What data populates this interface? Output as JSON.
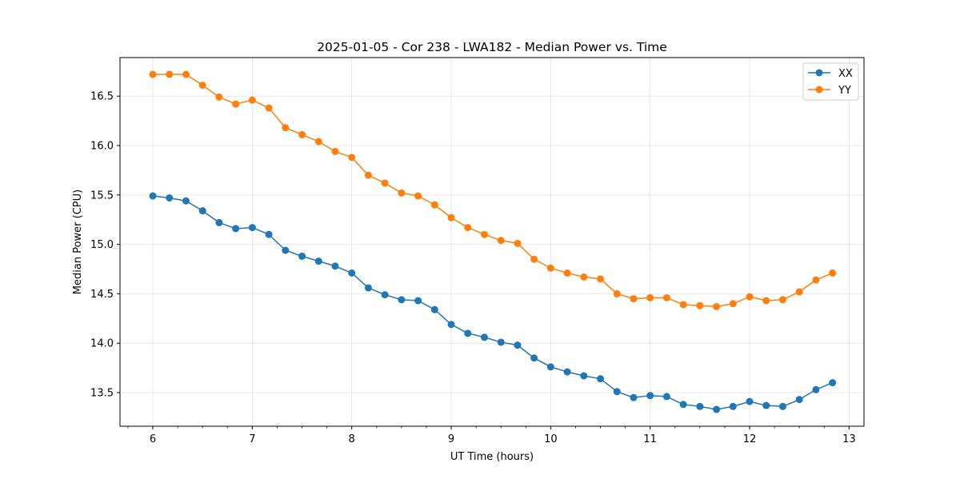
{
  "chart_data": {
    "type": "line",
    "title": "2025-01-05 - Cor 238 - LWA182 - Median Power vs. Time",
    "xlabel": "UT Time (hours)",
    "ylabel": "Median Power (CPU)",
    "xlim": [
      5.67,
      13.15
    ],
    "ylim": [
      13.16,
      16.89
    ],
    "xticks": [
      6,
      7,
      8,
      9,
      10,
      11,
      12,
      13
    ],
    "xtick_labels": [
      "6",
      "7",
      "8",
      "9",
      "10",
      "11",
      "12",
      "13"
    ],
    "xminor_step": 0.25,
    "yticks": [
      13.5,
      14.0,
      14.5,
      15.0,
      15.5,
      16.0,
      16.5
    ],
    "ytick_labels": [
      "13.5",
      "14.0",
      "14.5",
      "15.0",
      "15.5",
      "16.0",
      "16.5"
    ],
    "grid": true,
    "legend_position": "top-right",
    "x": [
      6.0,
      6.1667,
      6.3333,
      6.5,
      6.6667,
      6.8333,
      7.0,
      7.1667,
      7.3333,
      7.5,
      7.6667,
      7.8333,
      8.0,
      8.1667,
      8.3333,
      8.5,
      8.6667,
      8.8333,
      9.0,
      9.1667,
      9.3333,
      9.5,
      9.6667,
      9.8333,
      10.0,
      10.1667,
      10.3333,
      10.5,
      10.6667,
      10.8333,
      11.0,
      11.1667,
      11.3333,
      11.5,
      11.6667,
      11.8333,
      12.0,
      12.1667,
      12.3333,
      12.5,
      12.6667,
      12.8333
    ],
    "series": [
      {
        "name": "XX",
        "color": "#1f77b4",
        "values": [
          15.49,
          15.47,
          15.44,
          15.34,
          15.22,
          15.16,
          15.17,
          15.1,
          14.94,
          14.88,
          14.83,
          14.78,
          14.71,
          14.56,
          14.49,
          14.44,
          14.43,
          14.34,
          14.19,
          14.1,
          14.06,
          14.01,
          13.98,
          13.85,
          13.76,
          13.71,
          13.67,
          13.64,
          13.51,
          13.45,
          13.47,
          13.46,
          13.38,
          13.36,
          13.33,
          13.36,
          13.41,
          13.37,
          13.36,
          13.43,
          13.53,
          13.6
        ]
      },
      {
        "name": "YY",
        "color": "#ff7f0e",
        "values": [
          16.72,
          16.72,
          16.72,
          16.61,
          16.49,
          16.42,
          16.46,
          16.38,
          16.18,
          16.11,
          16.04,
          15.94,
          15.88,
          15.7,
          15.62,
          15.52,
          15.49,
          15.4,
          15.27,
          15.17,
          15.1,
          15.04,
          15.01,
          14.85,
          14.76,
          14.71,
          14.67,
          14.65,
          14.5,
          14.45,
          14.46,
          14.46,
          14.39,
          14.38,
          14.37,
          14.4,
          14.47,
          14.43,
          14.44,
          14.52,
          14.64,
          14.71
        ]
      }
    ]
  }
}
